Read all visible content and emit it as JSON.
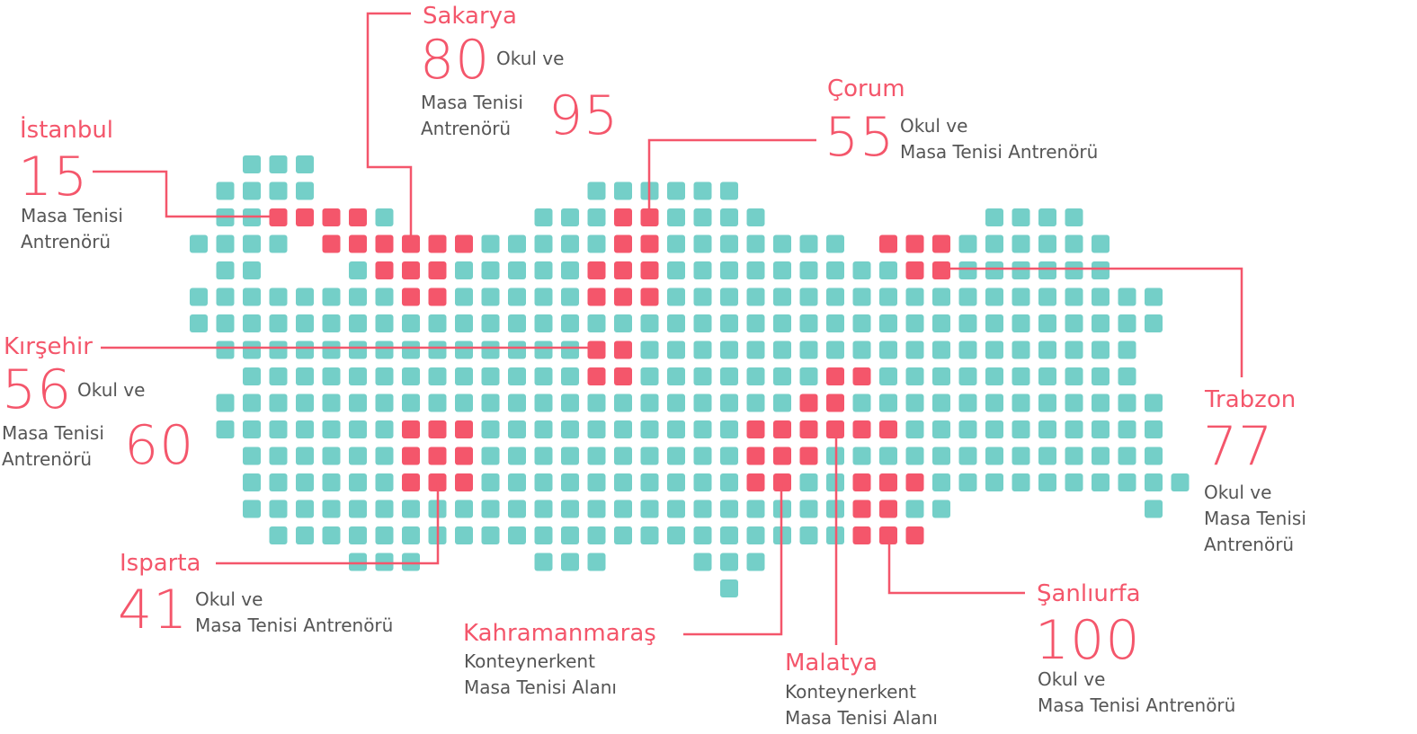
{
  "colors": {
    "tile": "#74cfc8",
    "highlight": "#f4566b",
    "text": "#555555"
  },
  "map": {
    "rows": [
      {
        "r": 0,
        "cols": [
          [
            2,
            4
          ]
        ]
      },
      {
        "r": 1,
        "cols": [
          [
            1,
            4
          ],
          [
            15,
            20
          ]
        ]
      },
      {
        "r": 2,
        "cols": [
          [
            1,
            7
          ],
          [
            13,
            21
          ],
          [
            30,
            33
          ]
        ]
      },
      {
        "r": 3,
        "cols": [
          [
            0,
            3
          ],
          [
            5,
            24
          ],
          [
            27,
            34
          ]
        ]
      },
      {
        "r": 4,
        "cols": [
          [
            1,
            2
          ],
          [
            6,
            34
          ]
        ]
      },
      {
        "r": 5,
        "cols": [
          [
            0,
            36
          ]
        ]
      },
      {
        "r": 6,
        "cols": [
          [
            0,
            36
          ]
        ]
      },
      {
        "r": 7,
        "cols": [
          [
            1,
            35
          ]
        ]
      },
      {
        "r": 8,
        "cols": [
          [
            2,
            35
          ]
        ]
      },
      {
        "r": 9,
        "cols": [
          [
            1,
            36
          ]
        ]
      },
      {
        "r": 10,
        "cols": [
          [
            1,
            36
          ]
        ]
      },
      {
        "r": 11,
        "cols": [
          [
            2,
            36
          ]
        ]
      },
      {
        "r": 12,
        "cols": [
          [
            2,
            37
          ]
        ]
      },
      {
        "r": 13,
        "cols": [
          [
            2,
            28
          ],
          [
            36,
            36
          ]
        ]
      },
      {
        "r": 14,
        "cols": [
          [
            3,
            27
          ]
        ]
      },
      {
        "r": 15,
        "cols": [
          [
            6,
            8
          ],
          [
            13,
            15
          ],
          [
            19,
            21
          ]
        ]
      },
      {
        "r": 16,
        "cols": [
          [
            20,
            20
          ]
        ]
      }
    ],
    "highlights": [
      [
        2,
        3
      ],
      [
        2,
        4
      ],
      [
        2,
        5
      ],
      [
        2,
        6
      ],
      [
        3,
        5
      ],
      [
        3,
        6
      ],
      [
        3,
        7
      ],
      [
        3,
        8
      ],
      [
        3,
        9
      ],
      [
        3,
        10
      ],
      [
        4,
        7
      ],
      [
        4,
        8
      ],
      [
        4,
        9
      ],
      [
        5,
        8
      ],
      [
        5,
        9
      ],
      [
        2,
        16
      ],
      [
        2,
        17
      ],
      [
        3,
        16
      ],
      [
        3,
        17
      ],
      [
        4,
        15
      ],
      [
        4,
        16
      ],
      [
        4,
        17
      ],
      [
        5,
        15
      ],
      [
        5,
        16
      ],
      [
        5,
        17
      ],
      [
        7,
        15
      ],
      [
        7,
        16
      ],
      [
        8,
        15
      ],
      [
        8,
        16
      ],
      [
        10,
        8
      ],
      [
        10,
        9
      ],
      [
        10,
        10
      ],
      [
        11,
        8
      ],
      [
        11,
        9
      ],
      [
        11,
        10
      ],
      [
        12,
        8
      ],
      [
        12,
        9
      ],
      [
        12,
        10
      ],
      [
        8,
        24
      ],
      [
        8,
        25
      ],
      [
        9,
        23
      ],
      [
        9,
        24
      ],
      [
        10,
        21
      ],
      [
        10,
        22
      ],
      [
        10,
        23
      ],
      [
        10,
        24
      ],
      [
        10,
        25
      ],
      [
        10,
        26
      ],
      [
        11,
        21
      ],
      [
        11,
        22
      ],
      [
        11,
        23
      ],
      [
        12,
        21
      ],
      [
        12,
        22
      ],
      [
        12,
        25
      ],
      [
        12,
        26
      ],
      [
        12,
        27
      ],
      [
        13,
        25
      ],
      [
        13,
        26
      ],
      [
        14,
        25
      ],
      [
        14,
        26
      ],
      [
        14,
        27
      ],
      [
        3,
        26
      ],
      [
        3,
        27
      ],
      [
        3,
        28
      ],
      [
        4,
        27
      ],
      [
        4,
        28
      ]
    ]
  },
  "cities": {
    "istanbul": {
      "name": "İstanbul",
      "number": "15",
      "desc1": "Masa Tenisi",
      "desc2": "Antrenörü"
    },
    "sakarya": {
      "name": "Sakarya",
      "number1": "80",
      "desc1": "Okul ve",
      "desc2": "Masa Tenisi",
      "desc3": "Antrenörü",
      "number2": "95"
    },
    "corum": {
      "name": "Çorum",
      "number": "55",
      "desc1": "Okul ve",
      "desc2": "Masa Tenisi Antrenörü"
    },
    "kirsehir": {
      "name": "Kırşehir",
      "number1": "56",
      "desc1": "Okul ve",
      "desc2": "Masa Tenisi",
      "desc3": "Antrenörü",
      "number2": "60"
    },
    "trabzon": {
      "name": "Trabzon",
      "number": "77",
      "desc1": "Okul ve",
      "desc2": "Masa Tenisi",
      "desc3": "Antrenörü"
    },
    "isparta": {
      "name": "Isparta",
      "number": "41",
      "desc1": "Okul ve",
      "desc2": "Masa Tenisi Antrenörü"
    },
    "kahramanmaras": {
      "name": "Kahramanmaraş",
      "desc1": "Konteynerkent",
      "desc2": "Masa Tenisi Alanı"
    },
    "malatya": {
      "name": "Malatya",
      "desc1": "Konteynerkent",
      "desc2": "Masa Tenisi Alanı"
    },
    "sanliurfa": {
      "name": "Şanlıurfa",
      "number": "100",
      "desc1": "Okul ve",
      "desc2": "Masa Tenisi Antrenörü"
    }
  }
}
